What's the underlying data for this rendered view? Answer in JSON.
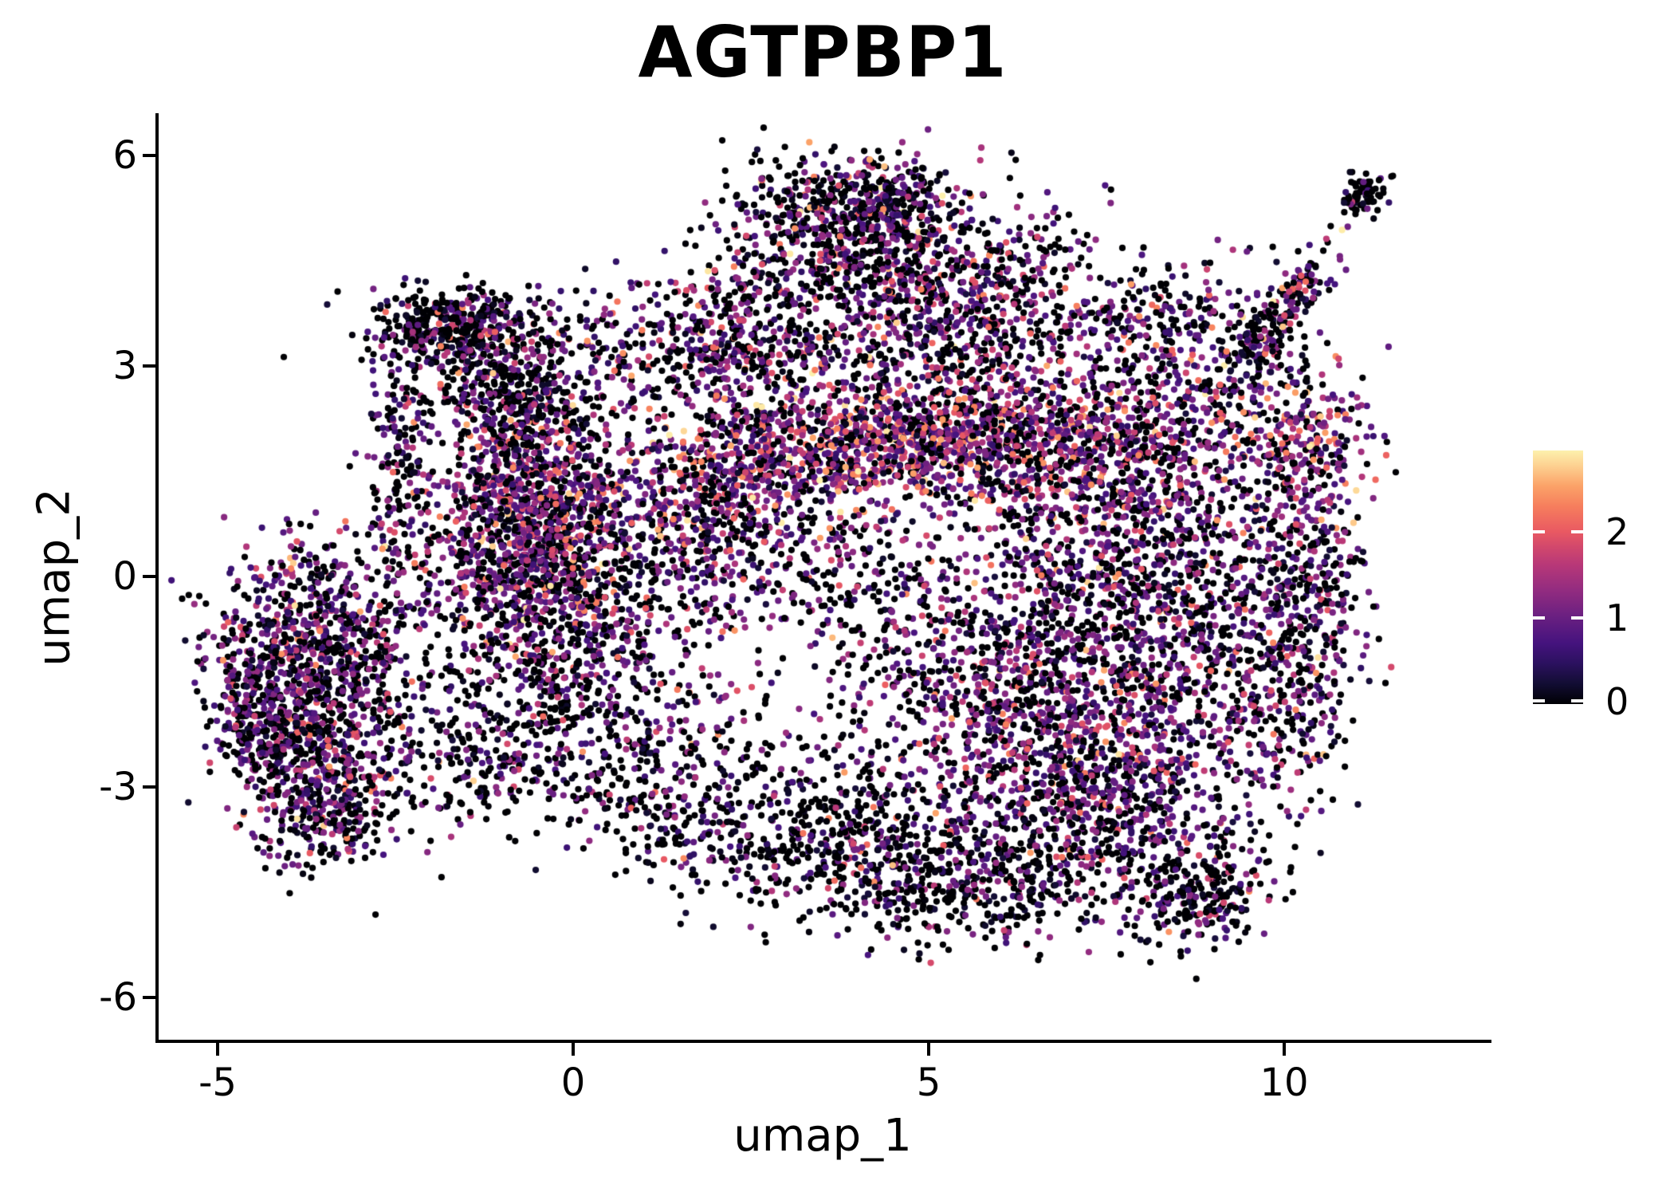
{
  "chart_data": {
    "type": "scatter",
    "title": "AGTPBP1",
    "xlabel": "umap_1",
    "ylabel": "umap_2",
    "grid": false,
    "background": "#ffffff",
    "axis_color": "#000000",
    "xlim": [
      -5.85,
      12.87
    ],
    "ylim": [
      -6.6,
      6.6
    ],
    "x_ticks": [
      {
        "v": -5,
        "label": "-5"
      },
      {
        "v": 0,
        "label": "0"
      },
      {
        "v": 5,
        "label": "5"
      },
      {
        "v": 10,
        "label": "10"
      }
    ],
    "y_ticks": [
      {
        "v": 6,
        "label": "6"
      },
      {
        "v": 3,
        "label": "3"
      },
      {
        "v": 0,
        "label": "0"
      },
      {
        "v": -3,
        "label": "-3"
      },
      {
        "v": -6,
        "label": "-6"
      }
    ],
    "colorbar": {
      "vmin": 0,
      "vmax": 2.95,
      "colormap": "magma",
      "legend_position": "right",
      "ticks": [
        {
          "v": 2,
          "label": "2"
        },
        {
          "v": 1,
          "label": "1"
        },
        {
          "v": 0,
          "label": "0"
        }
      ],
      "stops": [
        [
          0.0,
          "#000004"
        ],
        [
          0.08,
          "#120d33"
        ],
        [
          0.16,
          "#2b115f"
        ],
        [
          0.24,
          "#45137e"
        ],
        [
          0.34,
          "#681f81"
        ],
        [
          0.45,
          "#932c80"
        ],
        [
          0.55,
          "#b83878"
        ],
        [
          0.62,
          "#d2486c"
        ],
        [
          0.68,
          "#e95962"
        ],
        [
          0.78,
          "#f67e5d"
        ],
        [
          0.86,
          "#fba268"
        ],
        [
          0.94,
          "#fdd191"
        ],
        [
          1.0,
          "#fdf1ad"
        ]
      ]
    },
    "point": {
      "radius_px": 4.1,
      "seed": 1234567,
      "total_points": 15445
    },
    "value_bins": [
      [
        0.0,
        0.3
      ],
      [
        0.5,
        1.35
      ],
      [
        1.35,
        1.95
      ],
      [
        1.95,
        2.45
      ],
      [
        2.45,
        2.95
      ]
    ],
    "cluster_fields": "cx, cy, sigma_x, sigma_y, rot_deg, n_points, bin_weights[black,purple,magenta,pink,hot]",
    "clusters": [
      [
        -3.55,
        -0.85,
        0.55,
        0.8,
        20,
        520,
        [
          48,
          38,
          10,
          3,
          1
        ]
      ],
      [
        -4.0,
        -2.3,
        0.5,
        0.75,
        10,
        500,
        [
          54,
          34,
          8,
          3,
          1
        ]
      ],
      [
        -3.3,
        -3.3,
        0.45,
        0.5,
        -30,
        250,
        [
          60,
          30,
          7,
          2,
          1
        ]
      ],
      [
        -4.55,
        -1.6,
        0.32,
        0.65,
        15,
        190,
        [
          55,
          35,
          7,
          2,
          1
        ]
      ],
      [
        -2.8,
        -1.3,
        0.5,
        0.85,
        0,
        150,
        [
          60,
          30,
          7,
          2,
          1
        ]
      ],
      [
        -1.6,
        -2.6,
        0.6,
        0.55,
        -15,
        150,
        [
          66,
          27,
          5,
          1.5,
          0.5
        ]
      ],
      [
        -2.4,
        1.7,
        0.2,
        0.85,
        0,
        170,
        [
          58,
          30,
          8,
          3,
          1
        ]
      ],
      [
        -1.65,
        3.6,
        0.62,
        0.24,
        -6,
        330,
        [
          70,
          22,
          6,
          2,
          0
        ]
      ],
      [
        -1.15,
        2.85,
        0.7,
        0.45,
        -15,
        370,
        [
          62,
          27,
          7,
          3,
          1
        ]
      ],
      [
        -0.6,
        1.95,
        0.55,
        0.55,
        0,
        300,
        [
          55,
          32,
          9,
          3,
          1
        ]
      ],
      [
        -0.55,
        1.0,
        0.75,
        0.5,
        0,
        520,
        [
          40,
          40,
          13,
          5,
          2
        ]
      ],
      [
        -0.5,
        0.15,
        0.85,
        0.55,
        0,
        680,
        [
          45,
          38,
          11,
          4,
          2
        ]
      ],
      [
        -0.3,
        -1.0,
        0.9,
        0.6,
        0,
        420,
        [
          55,
          32,
          8,
          3,
          2
        ]
      ],
      [
        0.5,
        -2.4,
        1.05,
        0.7,
        0,
        400,
        [
          62,
          29,
          6,
          2,
          1
        ]
      ],
      [
        1.6,
        -3.7,
        0.7,
        0.45,
        -20,
        150,
        [
          70,
          25,
          4,
          1,
          0
        ]
      ],
      [
        1.8,
        0.4,
        0.8,
        0.6,
        0,
        250,
        [
          50,
          36,
          10,
          3,
          1
        ]
      ],
      [
        4.3,
        1.95,
        1.1,
        0.42,
        3,
        720,
        [
          22,
          38,
          20,
          14,
          6
        ]
      ],
      [
        2.2,
        1.6,
        0.9,
        0.5,
        8,
        480,
        [
          35,
          38,
          16,
          8,
          3
        ]
      ],
      [
        6.4,
        1.9,
        1.0,
        0.5,
        0,
        500,
        [
          35,
          40,
          15,
          7,
          3
        ]
      ],
      [
        8.4,
        2.3,
        0.8,
        0.55,
        0,
        300,
        [
          35,
          35,
          15,
          10,
          5
        ]
      ],
      [
        10.3,
        1.9,
        0.38,
        0.5,
        0,
        170,
        [
          25,
          33,
          19,
          15,
          8
        ]
      ],
      [
        4.3,
        4.0,
        1.2,
        0.75,
        0,
        780,
        [
          52,
          34,
          9,
          4,
          1
        ]
      ],
      [
        3.9,
        5.1,
        0.75,
        0.4,
        -12,
        400,
        [
          58,
          30,
          8,
          3,
          1
        ]
      ],
      [
        2.3,
        3.4,
        0.7,
        0.6,
        -30,
        340,
        [
          55,
          32,
          9,
          3,
          1
        ]
      ],
      [
        6.0,
        3.6,
        0.9,
        0.7,
        25,
        440,
        [
          48,
          36,
          11,
          4,
          1
        ]
      ],
      [
        4.5,
        5.45,
        0.5,
        0.26,
        0,
        140,
        [
          60,
          30,
          7,
          2,
          1
        ]
      ],
      [
        0.9,
        3.1,
        0.8,
        0.5,
        0,
        190,
        [
          55,
          33,
          8,
          3,
          1
        ]
      ],
      [
        7.6,
        0.9,
        1.2,
        0.9,
        0,
        680,
        [
          48,
          38,
          10,
          3,
          1
        ]
      ],
      [
        8.6,
        -0.3,
        1.1,
        0.9,
        0,
        620,
        [
          50,
          37,
          9,
          3,
          1
        ]
      ],
      [
        7.2,
        -2.2,
        1.15,
        0.85,
        10,
        880,
        [
          38,
          45,
          12,
          4,
          1
        ]
      ],
      [
        5.6,
        -1.2,
        1.0,
        0.9,
        0,
        580,
        [
          52,
          35,
          9,
          3,
          1
        ]
      ],
      [
        3.2,
        0.2,
        1.0,
        0.6,
        0,
        250,
        [
          55,
          34,
          8,
          2,
          1
        ]
      ],
      [
        3.6,
        -3.6,
        0.9,
        0.6,
        -20,
        480,
        [
          72,
          22,
          4,
          1.5,
          0.5
        ]
      ],
      [
        5.6,
        -4.25,
        0.9,
        0.5,
        0,
        430,
        [
          75,
          20,
          4,
          1,
          0
        ]
      ],
      [
        8.8,
        -4.55,
        0.55,
        0.38,
        15,
        260,
        [
          70,
          23,
          5,
          1.5,
          0.5
        ]
      ],
      [
        7.6,
        -3.4,
        0.8,
        0.6,
        0,
        400,
        [
          55,
          35,
          8,
          2,
          0
        ]
      ],
      [
        10.35,
        0.5,
        0.38,
        1.15,
        0,
        300,
        [
          50,
          36,
          10,
          3,
          1
        ]
      ],
      [
        9.9,
        -1.8,
        0.5,
        0.9,
        -15,
        250,
        [
          55,
          34,
          8,
          2,
          1
        ]
      ],
      [
        10.15,
        3.95,
        0.55,
        0.16,
        52,
        130,
        [
          55,
          30,
          8,
          4,
          3
        ]
      ],
      [
        11.1,
        5.45,
        0.17,
        0.12,
        40,
        70,
        [
          86,
          12,
          2,
          0,
          0
        ]
      ],
      [
        9.65,
        3.3,
        0.24,
        0.26,
        0,
        85,
        [
          75,
          20,
          4,
          1,
          0
        ]
      ],
      [
        8.3,
        3.6,
        0.8,
        0.5,
        0,
        220,
        [
          55,
          30,
          9,
          4,
          2
        ]
      ]
    ]
  }
}
